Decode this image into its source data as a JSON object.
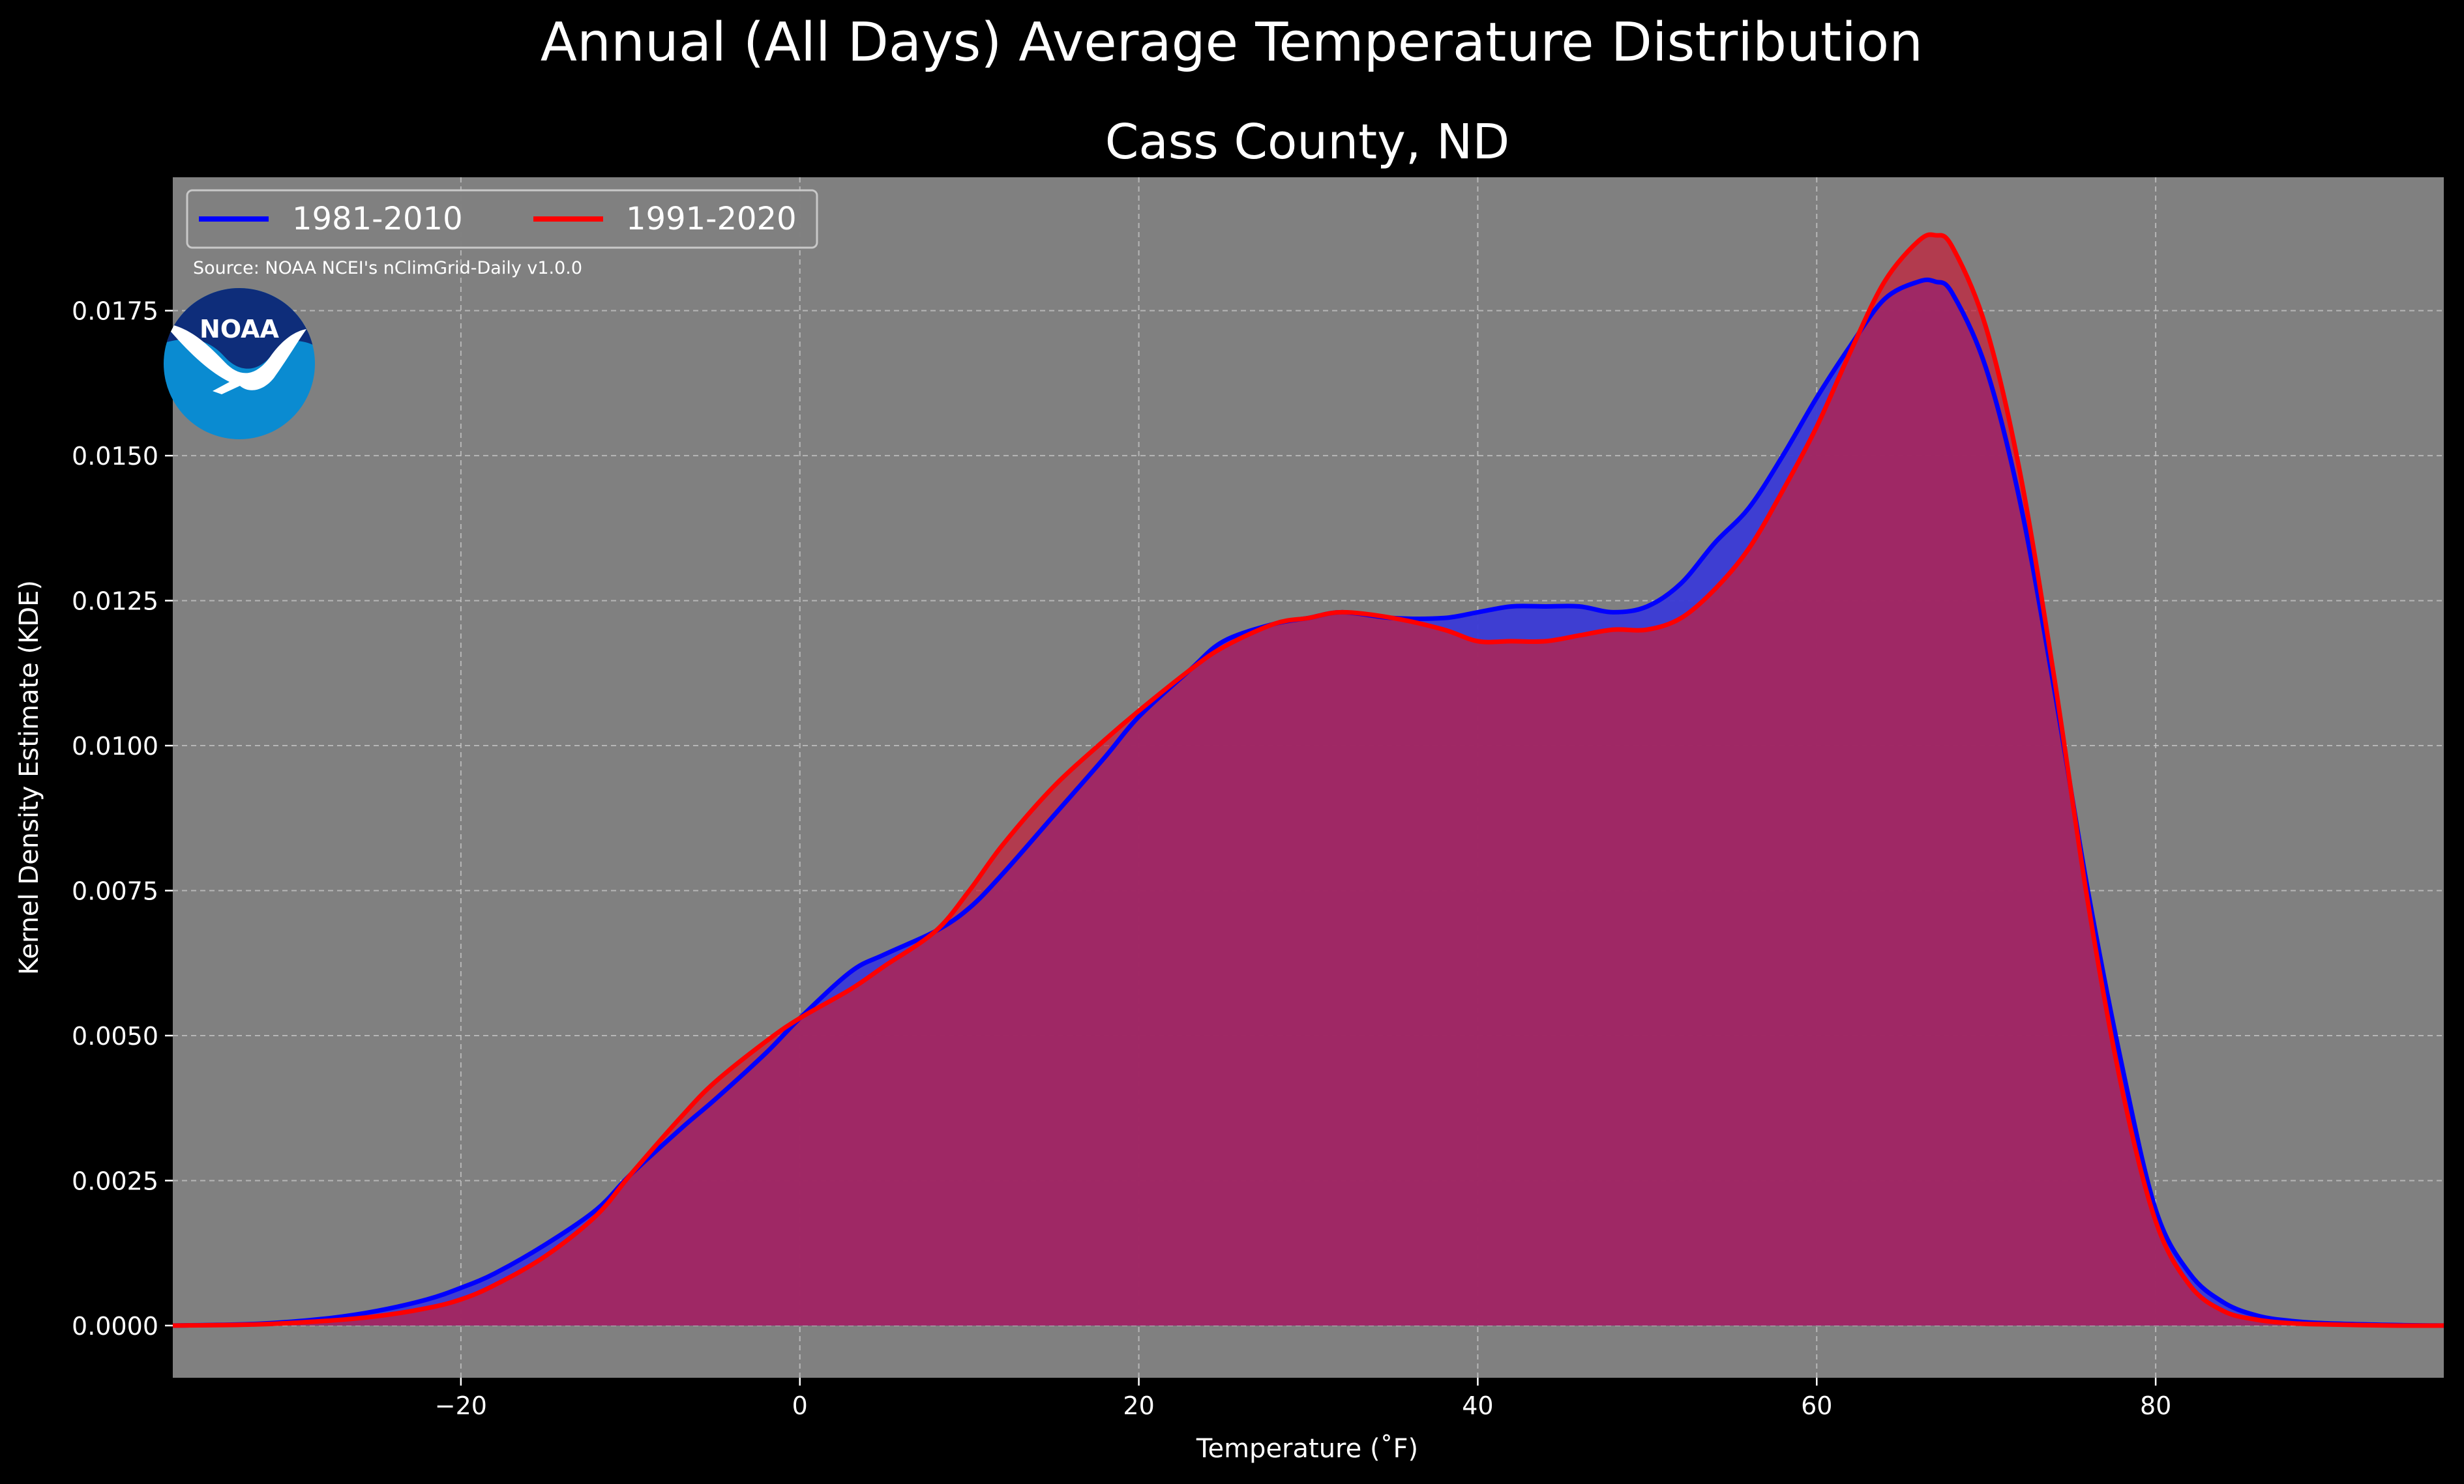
{
  "chart_data": {
    "type": "area",
    "title": "Annual (All Days) Average Temperature Distribution",
    "subtitle": "Cass County, ND",
    "xlabel": "Temperature (˚F)",
    "ylabel": "Kernel Density Estimate (KDE)",
    "xlim": [
      -37,
      97
    ],
    "ylim": [
      -0.0009,
      0.0198
    ],
    "xticks": [
      -20,
      0,
      20,
      40,
      60,
      80
    ],
    "xtick_labels": [
      "−20",
      "0",
      "20",
      "40",
      "60",
      "80"
    ],
    "yticks": [
      0,
      0.0025,
      0.005,
      0.0075,
      0.01,
      0.0125,
      0.015,
      0.0175
    ],
    "ytick_labels": [
      "0.0000",
      "0.0025",
      "0.0050",
      "0.0075",
      "0.0100",
      "0.0125",
      "0.0150",
      "0.0175"
    ],
    "grid": true,
    "legend_position": "top-left",
    "source": "Source: NOAA NCEI's nClimGrid-Daily v1.0.0",
    "logo_text": "NOAA",
    "series": [
      {
        "name": "1981-2010",
        "color": "#0000ff",
        "fill": "#3a3ad6",
        "x": [
          -37,
          -32,
          -28,
          -25,
          -22,
          -20,
          -18,
          -15,
          -12,
          -10,
          -7,
          -5,
          -2,
          0,
          3,
          5,
          8,
          10,
          12,
          15,
          18,
          20,
          23,
          25,
          28,
          30,
          32,
          35,
          38,
          40,
          42,
          44,
          46,
          48,
          50,
          52,
          54,
          56,
          58,
          60,
          62,
          64,
          66,
          67,
          68,
          70,
          72,
          74,
          76,
          78,
          80,
          82,
          84,
          86,
          88,
          90,
          94,
          97
        ],
        "y": [
          0,
          3e-05,
          0.00012,
          0.00025,
          0.00045,
          0.00065,
          0.0009,
          0.0014,
          0.002,
          0.0026,
          0.0034,
          0.0039,
          0.0047,
          0.0053,
          0.0061,
          0.0064,
          0.0068,
          0.0072,
          0.0078,
          0.0088,
          0.0098,
          0.0105,
          0.0113,
          0.0118,
          0.0121,
          0.0122,
          0.0123,
          0.0122,
          0.0122,
          0.0123,
          0.0124,
          0.0124,
          0.0124,
          0.0123,
          0.0124,
          0.0128,
          0.0135,
          0.0141,
          0.015,
          0.016,
          0.0169,
          0.0177,
          0.018,
          0.018,
          0.0178,
          0.0165,
          0.0142,
          0.011,
          0.0075,
          0.0045,
          0.002,
          0.0009,
          0.0004,
          0.00017,
          8e-05,
          4e-05,
          1e-05,
          0
        ]
      },
      {
        "name": "1991-2020",
        "color": "#ff0000",
        "fill": "#c5203a",
        "x": [
          -37,
          -32,
          -28,
          -25,
          -22,
          -20,
          -18,
          -15,
          -12,
          -10,
          -7,
          -5,
          -2,
          0,
          3,
          5,
          8,
          10,
          12,
          15,
          18,
          20,
          23,
          25,
          28,
          30,
          32,
          35,
          38,
          40,
          42,
          44,
          46,
          48,
          50,
          52,
          54,
          56,
          58,
          60,
          62,
          64,
          66,
          67,
          68,
          70,
          72,
          74,
          76,
          78,
          80,
          82,
          84,
          86,
          88,
          90,
          94,
          97
        ],
        "y": [
          0,
          2e-05,
          8e-05,
          0.00016,
          0.0003,
          0.00045,
          0.0007,
          0.0012,
          0.0019,
          0.0026,
          0.0036,
          0.0042,
          0.0049,
          0.0053,
          0.0058,
          0.0062,
          0.0068,
          0.0075,
          0.0083,
          0.0093,
          0.0101,
          0.0106,
          0.0113,
          0.0117,
          0.0121,
          0.0122,
          0.0123,
          0.0122,
          0.012,
          0.0118,
          0.0118,
          0.0118,
          0.0119,
          0.012,
          0.012,
          0.0122,
          0.0127,
          0.0134,
          0.0144,
          0.0155,
          0.0168,
          0.018,
          0.0187,
          0.0188,
          0.0186,
          0.0172,
          0.0147,
          0.0112,
          0.0073,
          0.0041,
          0.0018,
          0.0007,
          0.00025,
          0.0001,
          4e-05,
          2e-05,
          0,
          0
        ]
      }
    ]
  }
}
